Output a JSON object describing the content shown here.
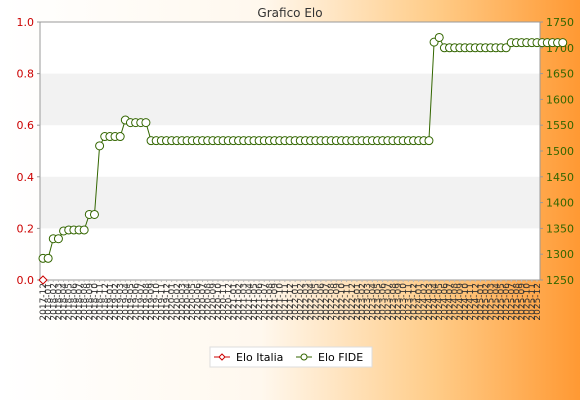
{
  "chart_data": {
    "type": "line",
    "title": "Grafico Elo",
    "left_axis": {
      "ylim": [
        0.0,
        1.0
      ],
      "ticks": [
        "0.0",
        "0.2",
        "0.4",
        "0.6",
        "0.8",
        "1.0"
      ]
    },
    "right_axis": {
      "ylim": [
        1250,
        1750
      ],
      "ticks": [
        "1250",
        "1300",
        "1350",
        "1400",
        "1450",
        "1500",
        "1550",
        "1600",
        "1650",
        "1700",
        "1750"
      ]
    },
    "grid": "horizontal bands",
    "legend_position": "bottom",
    "series": [
      {
        "name": "Elo Italia",
        "axis": "left",
        "color": "#cc0000",
        "values": [
          0
        ]
      },
      {
        "name": "Elo FIDE",
        "axis": "right",
        "color": "#336600",
        "values": [
          1292,
          1292,
          1330,
          1330,
          1345,
          1347,
          1347,
          1347,
          1347,
          1377,
          1377,
          1510,
          1528,
          1528,
          1528,
          1528,
          1560,
          1555,
          1555,
          1555,
          1555,
          1520,
          1520,
          1520,
          1520,
          1520,
          1520,
          1520,
          1520,
          1520,
          1520,
          1520,
          1520,
          1520,
          1520,
          1520,
          1520,
          1520,
          1520,
          1520,
          1520,
          1520,
          1520,
          1520,
          1520,
          1520,
          1520,
          1520,
          1520,
          1520,
          1520,
          1520,
          1520,
          1520,
          1520,
          1520,
          1520,
          1520,
          1520,
          1520,
          1520,
          1520,
          1520,
          1520,
          1520,
          1520,
          1520,
          1520,
          1520,
          1520,
          1520,
          1520,
          1520,
          1520,
          1520,
          1520,
          1711,
          1720,
          1700,
          1700,
          1700,
          1700,
          1700,
          1700,
          1700,
          1700,
          1700,
          1700,
          1700,
          1700,
          1700,
          1710,
          1710,
          1710,
          1710,
          1710,
          1710,
          1710,
          1710,
          1710,
          1710,
          1710
        ]
      }
    ],
    "x_labels": [
      "2017-12",
      "2018-01",
      "2018-02",
      "2018-03",
      "2018-04",
      "2018-05",
      "2018-06",
      "2018-07",
      "2018-08",
      "2018-09",
      "2018-10",
      "2018-11",
      "2018-12",
      "2019-01",
      "2019-02",
      "2019-03",
      "2019-04",
      "2019-05",
      "2019-06",
      "2019-07",
      "2019-08",
      "2019-09",
      "2019-10",
      "2019-11",
      "2019-12",
      "2020-01",
      "2020-02",
      "2020-03",
      "2020-04",
      "2020-05",
      "2020-06",
      "2020-07",
      "2020-08",
      "2020-09",
      "2020-10",
      "2020-11",
      "2020-12",
      "2021-01",
      "2021-02",
      "2021-03",
      "2021-04",
      "2021-05",
      "2021-06",
      "2021-07",
      "2021-08",
      "2021-09",
      "2021-10",
      "2021-11",
      "2021-12",
      "2022-01",
      "2022-02",
      "2022-03",
      "2022-04",
      "2022-05",
      "2022-06",
      "2022-07",
      "2022-08",
      "2022-09",
      "2022-10",
      "2022-11",
      "2022-12",
      "2023-01",
      "2023-02",
      "2023-03",
      "2023-04",
      "2023-05",
      "2023-06",
      "2023-07",
      "2023-08",
      "2023-09",
      "2023-10",
      "2023-11",
      "2023-12",
      "2024-01",
      "2024-02",
      "2024-03",
      "2024-04",
      "2024-05",
      "2024-06",
      "2024-07",
      "2024-08",
      "2024-09",
      "2024-10",
      "2024-11",
      "2024-12",
      "2025-01",
      "2025-02",
      "2025-03",
      "2025-04",
      "2025-05",
      "2025-06",
      "2025-07",
      "2025-08",
      "2025-09",
      "2025-10",
      "2025-11",
      "2025-12"
    ]
  }
}
